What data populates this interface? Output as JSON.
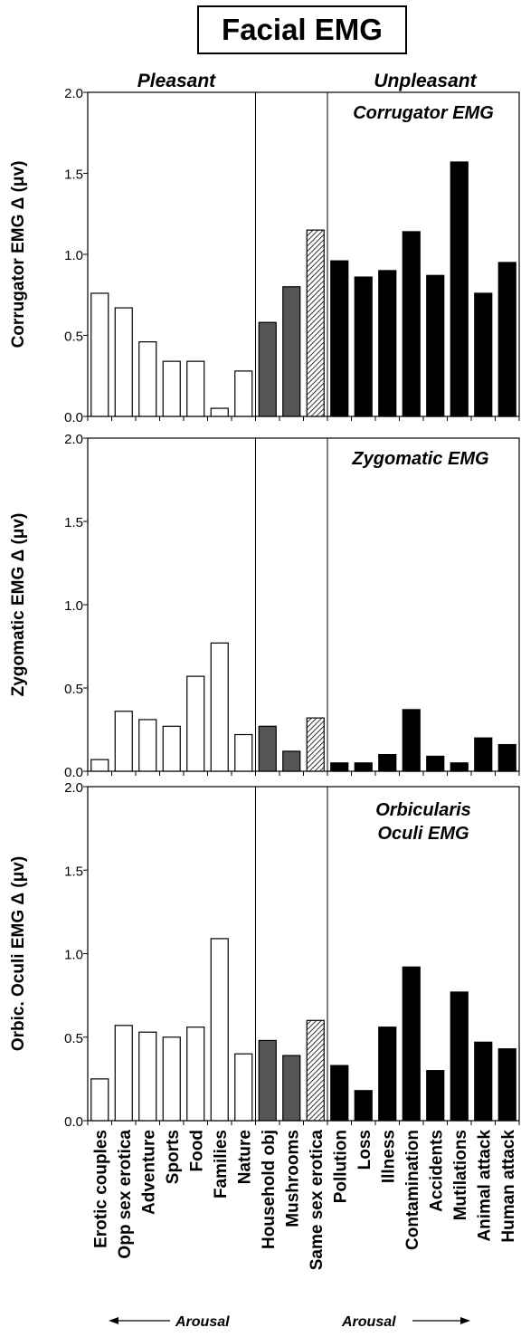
{
  "figure_title": "Facial EMG",
  "group_labels": {
    "pleasant": "Pleasant",
    "unpleasant": "Unpleasant"
  },
  "arousal_label": "Arousal",
  "colors": {
    "pleasant": "#ffffff",
    "neutral": "#555555",
    "hatched": "#ffffff",
    "unpleasant": "#000000"
  },
  "chart_data": [
    {
      "type": "bar",
      "title": "Corrugator EMG",
      "ylabel": "Corrugator EMG Δ (μv)",
      "ylim": [
        0,
        2.0
      ],
      "yticks": [
        "0.0",
        "0.5",
        "1.0",
        "1.5",
        "2.0"
      ],
      "categories": [
        "Erotic couples",
        "Opp sex erotica",
        "Adventure",
        "Sports",
        "Food",
        "Families",
        "Nature",
        "Household obj",
        "Mushrooms",
        "Same sex erotica",
        "Pollution",
        "Loss",
        "Illness",
        "Contamination",
        "Accidents",
        "Mutilations",
        "Animal attack",
        "Human attack"
      ],
      "values": [
        0.76,
        0.67,
        0.46,
        0.34,
        0.34,
        0.05,
        0.28,
        0.58,
        0.8,
        1.15,
        0.96,
        0.86,
        0.9,
        1.14,
        0.87,
        1.57,
        0.76,
        0.95
      ]
    },
    {
      "type": "bar",
      "title": "Zygomatic EMG",
      "ylabel": "Zygomatic EMG Δ (μv)",
      "ylim": [
        0,
        2.0
      ],
      "yticks": [
        "0.0",
        "0.5",
        "1.0",
        "1.5",
        "2.0"
      ],
      "categories": [
        "Erotic couples",
        "Opp sex erotica",
        "Adventure",
        "Sports",
        "Food",
        "Families",
        "Nature",
        "Household obj",
        "Mushrooms",
        "Same sex erotica",
        "Pollution",
        "Loss",
        "Illness",
        "Contamination",
        "Accidents",
        "Mutilations",
        "Animal attack",
        "Human attack"
      ],
      "values": [
        0.07,
        0.36,
        0.31,
        0.27,
        0.57,
        0.77,
        0.22,
        0.27,
        0.12,
        0.32,
        0.05,
        0.05,
        0.1,
        0.37,
        0.09,
        0.05,
        0.2,
        0.16
      ]
    },
    {
      "type": "bar",
      "title": "Orbicularis Oculi EMG",
      "ylabel": "Orbic. Oculi EMG Δ (μv)",
      "ylim": [
        0,
        2.0
      ],
      "yticks": [
        "0.0",
        "0.5",
        "1.0",
        "1.5",
        "2.0"
      ],
      "categories": [
        "Erotic couples",
        "Opp sex erotica",
        "Adventure",
        "Sports",
        "Food",
        "Families",
        "Nature",
        "Household obj",
        "Mushrooms",
        "Same sex erotica",
        "Pollution",
        "Loss",
        "Illness",
        "Contamination",
        "Accidents",
        "Mutilations",
        "Animal attack",
        "Human attack"
      ],
      "values": [
        0.25,
        0.57,
        0.53,
        0.5,
        0.56,
        1.09,
        0.4,
        0.48,
        0.39,
        0.6,
        0.33,
        0.18,
        0.56,
        0.92,
        0.3,
        0.77,
        0.47,
        0.43
      ]
    }
  ]
}
